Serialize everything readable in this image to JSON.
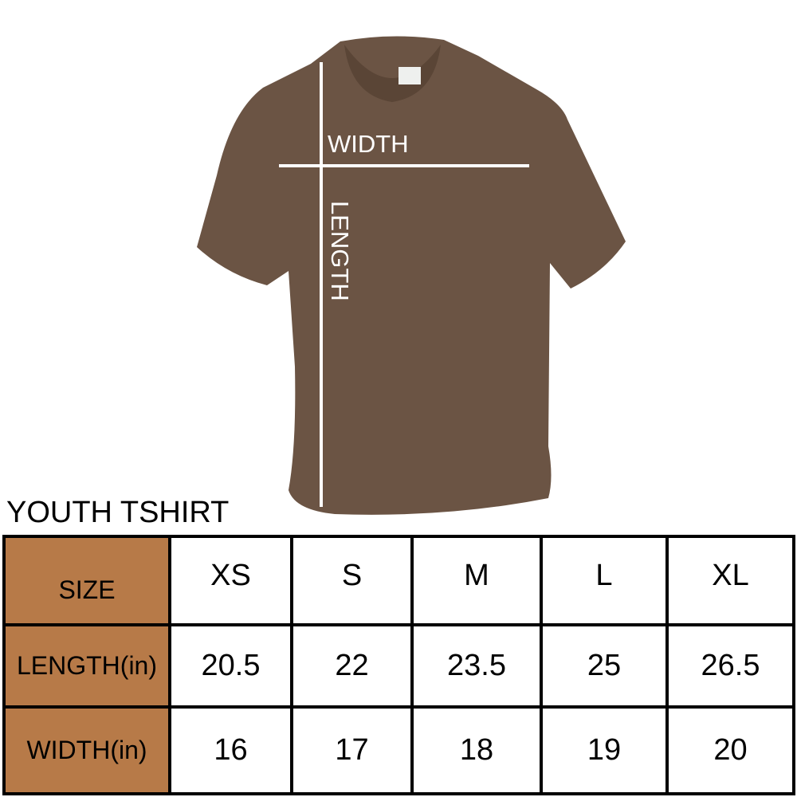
{
  "diagram": {
    "shirt_color": "#6b5444",
    "label_color": "#ffffff",
    "width_label": "WIDTH",
    "length_label": "LENGTH"
  },
  "table": {
    "title": "YOUTH TSHIRT",
    "header_color": "#b77a48",
    "size_label": "SIZE",
    "sizes": [
      "XS",
      "S",
      "M",
      "L",
      "XL"
    ],
    "rows": [
      {
        "label": "LENGTH(in)",
        "values": [
          "20.5",
          "22",
          "23.5",
          "25",
          "26.5"
        ]
      },
      {
        "label": "WIDTH(in)",
        "values": [
          "16",
          "17",
          "18",
          "19",
          "20"
        ]
      }
    ]
  }
}
